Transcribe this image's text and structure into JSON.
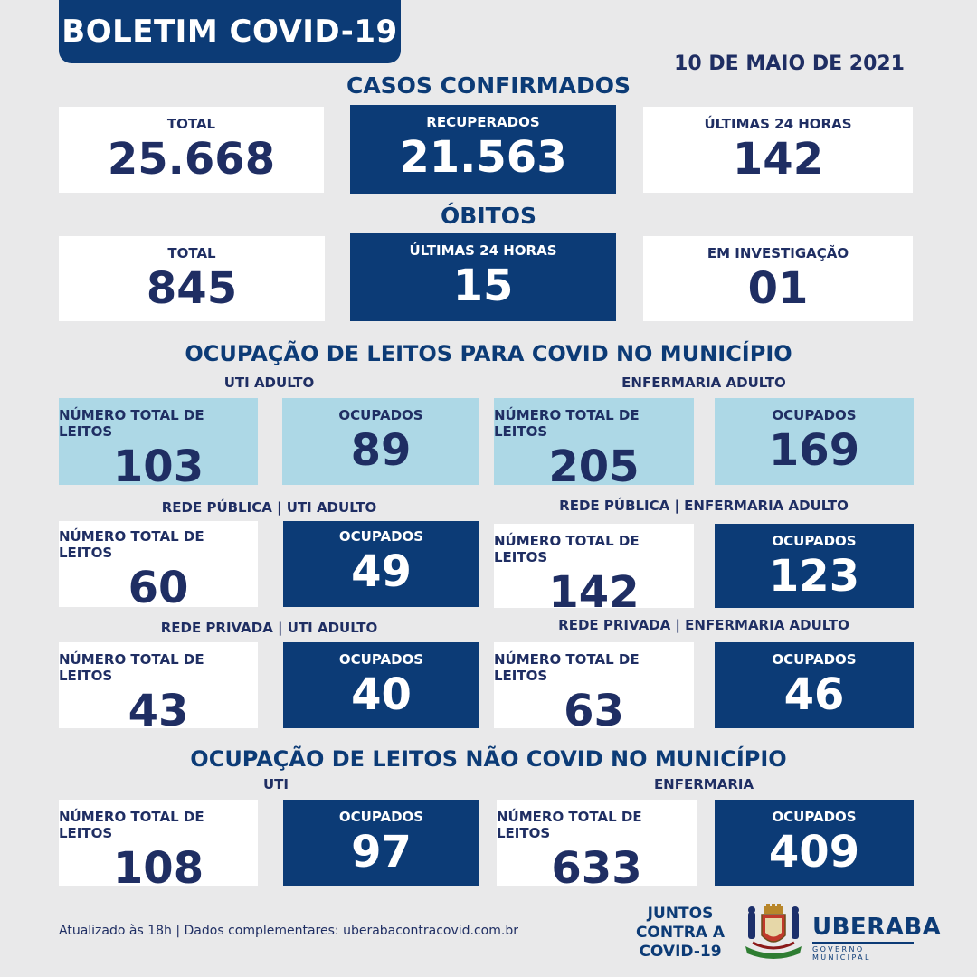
{
  "header": {
    "title": "BOLETIM COVID-19",
    "date": "10 DE MAIO DE 2021"
  },
  "casos": {
    "title": "CASOS CONFIRMADOS",
    "total_label": "TOTAL",
    "total_value": "25.668",
    "recuperados_label": "RECUPERADOS",
    "recuperados_value": "21.563",
    "ultimas_label": "ÚLTIMAS 24 HORAS",
    "ultimas_value": "142"
  },
  "obitos": {
    "title": "ÓBITOS",
    "total_label": "TOTAL",
    "total_value": "845",
    "ultimas_label": "ÚLTIMAS 24 HORAS",
    "ultimas_value": "15",
    "investigacao_label": "EM INVESTIGAÇÃO",
    "investigacao_value": "01"
  },
  "covid": {
    "title": "OCUPAÇÃO DE LEITOS PARA COVID NO MUNICÍPIO",
    "uti_title": "UTI ADULTO",
    "enf_title": "ENFERMARIA ADULTO",
    "total_label": "NÚMERO TOTAL DE LEITOS",
    "ocupados_label": "OCUPADOS",
    "uti_total": "103",
    "uti_ocupados": "89",
    "enf_total": "205",
    "enf_ocupados": "169",
    "pub_uti_title": "REDE PÚBLICA | UTI ADULTO",
    "pub_enf_title": "REDE PÚBLICA | ENFERMARIA ADULTO",
    "pub_uti_total": "60",
    "pub_uti_ocupados": "49",
    "pub_enf_total": "142",
    "pub_enf_ocupados": "123",
    "priv_uti_title": "REDE PRIVADA | UTI ADULTO",
    "priv_enf_title": "REDE PRIVADA | ENFERMARIA ADULTO",
    "priv_uti_total": "43",
    "priv_uti_ocupados": "40",
    "priv_enf_total": "63",
    "priv_enf_ocupados": "46"
  },
  "naocovid": {
    "title": "OCUPAÇÃO DE LEITOS NÃO COVID NO MUNICÍPIO",
    "uti_title": "UTI",
    "enf_title": "ENFERMARIA",
    "total_label": "NÚMERO TOTAL DE LEITOS",
    "ocupados_label": "OCUPADOS",
    "uti_total": "108",
    "uti_ocupados": "97",
    "enf_total": "633",
    "enf_ocupados": "409"
  },
  "footer": {
    "updated": "Atualizado às 18h | Dados complementares: uberabacontracovid.com.br",
    "juntos": "JUNTOS CONTRA A COVID-19",
    "juntos_line1": "JUNTOS",
    "juntos_line2": "CONTRA A",
    "juntos_line3": "COVID-19",
    "city": "UBERABA",
    "gov": "GOVERNO MUNICIPAL",
    "crest_icon": "coat-of-arms-icon"
  },
  "colors": {
    "navy": "#0c3b76",
    "light_blue": "#add8e6",
    "background": "#e9e9ea",
    "text": "#1f2e63"
  }
}
